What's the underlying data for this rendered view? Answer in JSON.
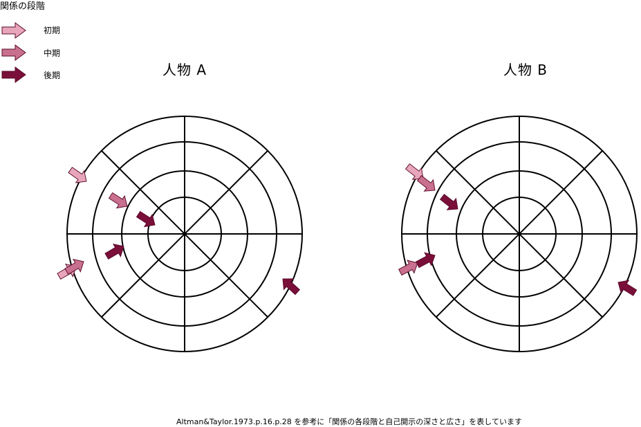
{
  "legend": {
    "title": "関係の段階",
    "items": [
      {
        "key": "early",
        "label": "初期",
        "color": "#e8a6bb"
      },
      {
        "key": "middle",
        "label": "中期",
        "color": "#c9708f"
      },
      {
        "key": "late",
        "label": "後期",
        "color": "#7a0f3a"
      }
    ]
  },
  "diagrams": [
    {
      "title": "人物 A"
    },
    {
      "title": "人物 B"
    }
  ],
  "footer": "Altman&Taylor.1973.p.16.p.28 を参考に「関係の各段階と自己開示の深さと広さ」を表しています"
}
